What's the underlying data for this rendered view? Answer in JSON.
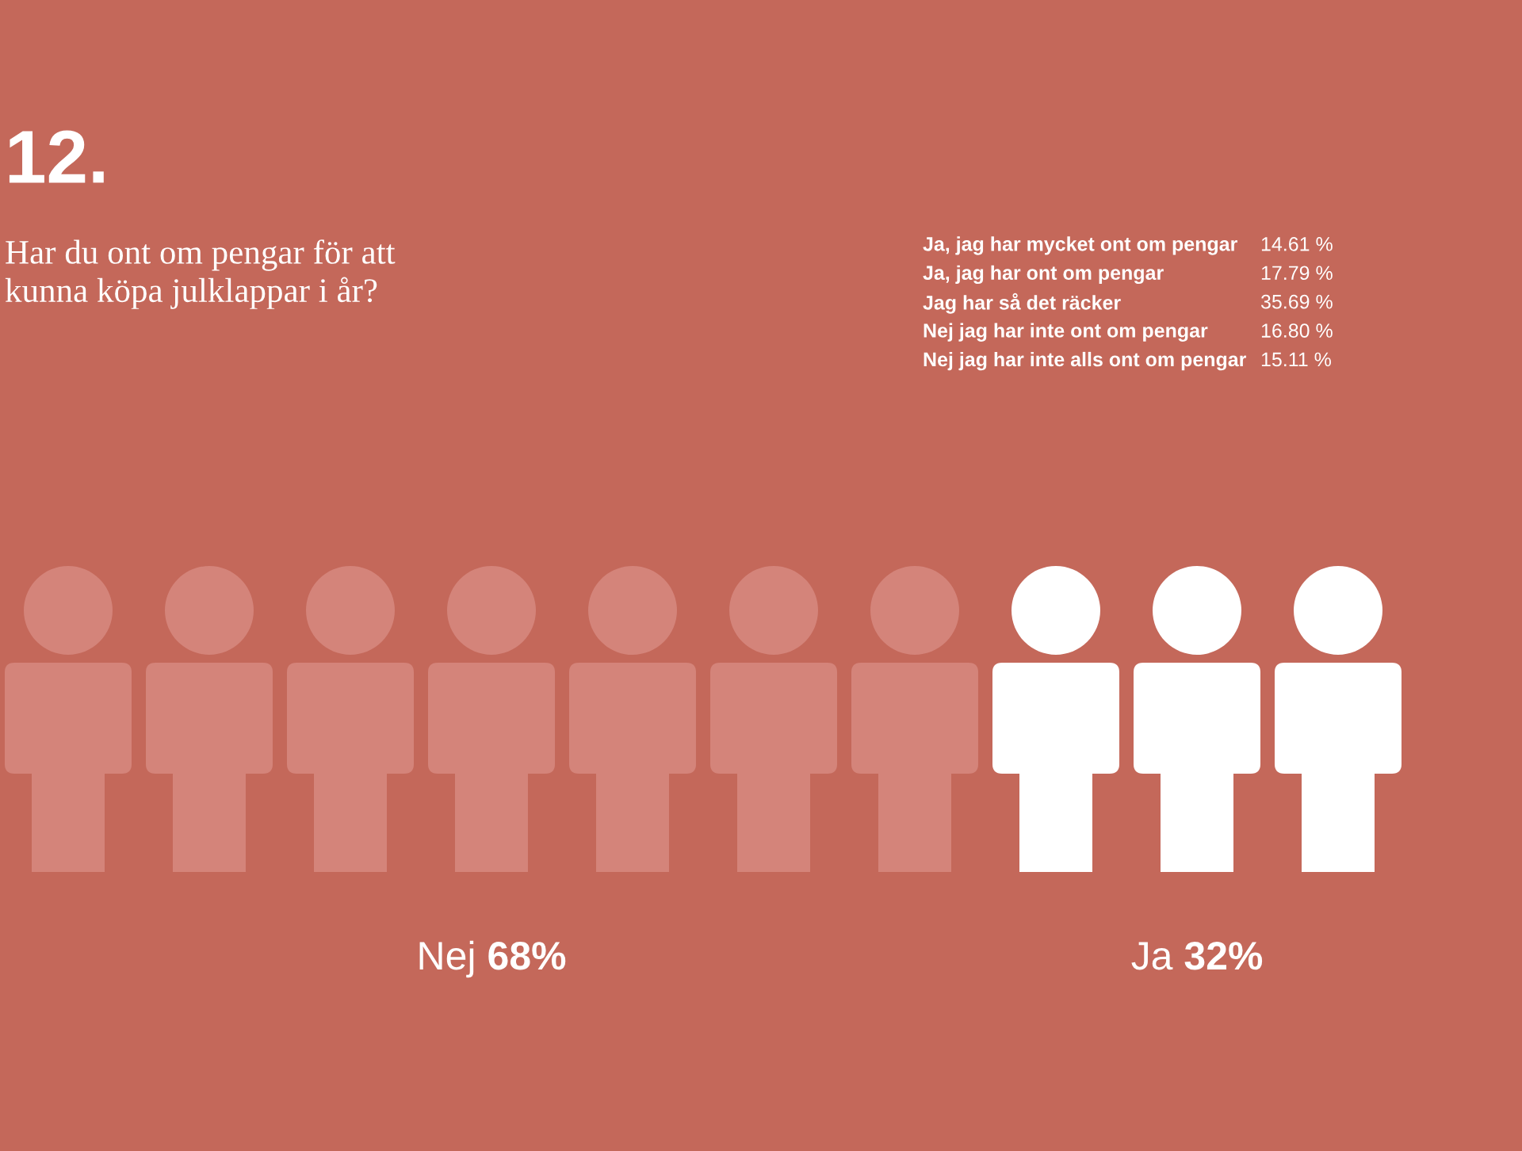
{
  "chart_data": [
    {
      "type": "other",
      "title": "12.",
      "subtitle": "Har du ont om pengar för att\nkunna köpa julklappar i år?",
      "categories": [
        "Ja, jag har mycket ont om pengar",
        "Ja, jag har ont om pengar",
        "Jag har så det räcker",
        "Nej jag har inte ont om pengar",
        "Nej jag har inte alls ont om pengar"
      ],
      "value_labels": [
        "14.61 %",
        "17.79 %",
        "35.69 %",
        "16.80 %",
        "15.11 %"
      ]
    },
    {
      "type": "other",
      "categories": [
        "Nej",
        "Ja"
      ],
      "values": [
        68,
        32
      ],
      "value_labels": [
        "68%",
        "32%"
      ],
      "colors": [
        "#d4847a",
        "#ffffff"
      ]
    }
  ]
}
